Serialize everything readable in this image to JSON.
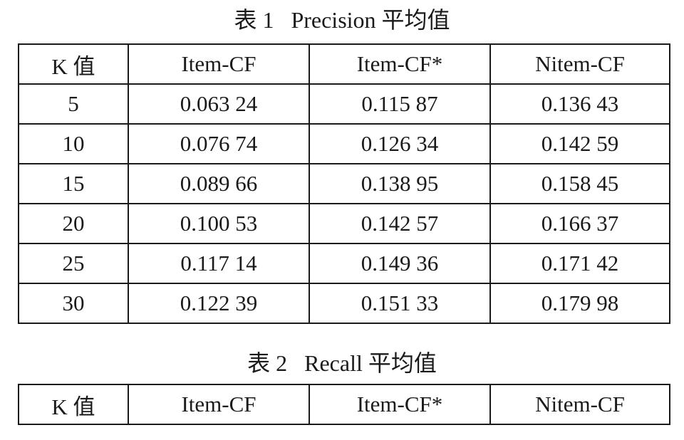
{
  "table1": {
    "caption": "表 1   Precision 平均值",
    "headers": [
      "K 值",
      "Item-CF",
      "Item-CF*",
      "Nitem-CF"
    ],
    "rows": [
      [
        "5",
        "0.063 24",
        "0.115 87",
        "0.136 43"
      ],
      [
        "10",
        "0.076 74",
        "0.126 34",
        "0.142 59"
      ],
      [
        "15",
        "0.089 66",
        "0.138 95",
        "0.158 45"
      ],
      [
        "20",
        "0.100 53",
        "0.142 57",
        "0.166 37"
      ],
      [
        "25",
        "0.117 14",
        "0.149 36",
        "0.171 42"
      ],
      [
        "30",
        "0.122 39",
        "0.151 33",
        "0.179 98"
      ]
    ]
  },
  "table2": {
    "caption": "表 2   Recall 平均值",
    "headers": [
      "K 值",
      "Item-CF",
      "Item-CF*",
      "Nitem-CF"
    ]
  }
}
